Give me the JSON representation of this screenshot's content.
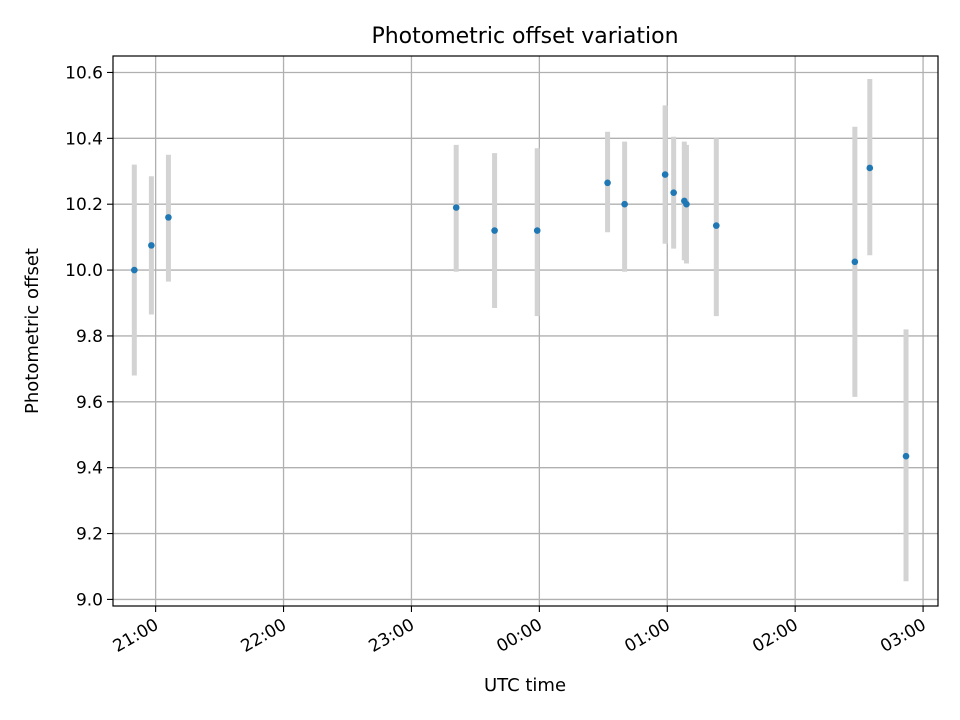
{
  "chart_data": {
    "type": "scatter",
    "title": "Photometric offset variation",
    "xlabel": "UTC time",
    "ylabel": "Photometric offset",
    "x_axis": "time",
    "xlim": [
      "20:40",
      "03:07"
    ],
    "ylim": [
      8.98,
      10.65
    ],
    "x_ticks": [
      "21:00",
      "22:00",
      "23:00",
      "00:00",
      "01:00",
      "02:00",
      "03:00"
    ],
    "y_ticks": [
      "9.0",
      "9.2",
      "9.4",
      "9.6",
      "9.8",
      "10.0",
      "10.2",
      "10.4",
      "10.6"
    ],
    "grid": true,
    "marker_color": "#1f77b4",
    "errorbar_color": "#d3d3d3",
    "points": [
      {
        "x": "20:50",
        "y": 10.0,
        "yerr_low": 9.68,
        "yerr_high": 10.32
      },
      {
        "x": "20:58",
        "y": 10.075,
        "yerr_low": 9.865,
        "yerr_high": 10.285
      },
      {
        "x": "21:06",
        "y": 10.16,
        "yerr_low": 9.965,
        "yerr_high": 10.35
      },
      {
        "x": "23:21",
        "y": 10.19,
        "yerr_low": 9.995,
        "yerr_high": 10.38
      },
      {
        "x": "23:39",
        "y": 10.12,
        "yerr_low": 9.885,
        "yerr_high": 10.355
      },
      {
        "x": "23:59",
        "y": 10.12,
        "yerr_low": 9.86,
        "yerr_high": 10.37
      },
      {
        "x": "00:32",
        "y": 10.265,
        "yerr_low": 10.115,
        "yerr_high": 10.42
      },
      {
        "x": "00:40",
        "y": 10.2,
        "yerr_low": 9.995,
        "yerr_high": 10.39
      },
      {
        "x": "00:59",
        "y": 10.29,
        "yerr_low": 10.08,
        "yerr_high": 10.5
      },
      {
        "x": "01:03",
        "y": 10.235,
        "yerr_low": 10.065,
        "yerr_high": 10.405
      },
      {
        "x": "01:08",
        "y": 10.21,
        "yerr_low": 10.03,
        "yerr_high": 10.39
      },
      {
        "x": "01:09",
        "y": 10.2,
        "yerr_low": 10.02,
        "yerr_high": 10.38
      },
      {
        "x": "01:23",
        "y": 10.135,
        "yerr_low": 9.86,
        "yerr_high": 10.4
      },
      {
        "x": "02:28",
        "y": 10.025,
        "yerr_low": 9.615,
        "yerr_high": 10.435
      },
      {
        "x": "02:35",
        "y": 10.31,
        "yerr_low": 10.045,
        "yerr_high": 10.58
      },
      {
        "x": "02:52",
        "y": 9.435,
        "yerr_low": 9.055,
        "yerr_high": 9.82
      }
    ]
  }
}
